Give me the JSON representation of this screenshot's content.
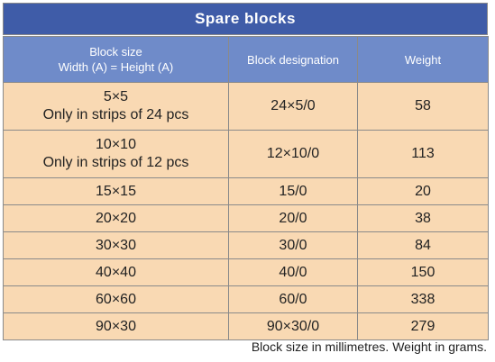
{
  "title": "Spare blocks",
  "headers": {
    "col1_line1": "Block size",
    "col1_line2": "Width (A) = Height (A)",
    "col2": "Block designation",
    "col3": "Weight"
  },
  "rows": [
    {
      "size": "5×5",
      "size_note": "Only in strips of 24 pcs",
      "designation": "24×5/0",
      "weight": "58"
    },
    {
      "size": "10×10",
      "size_note": "Only in strips of 12 pcs",
      "designation": "12×10/0",
      "weight": "113"
    },
    {
      "size": "15×15",
      "designation": "15/0",
      "weight": "20"
    },
    {
      "size": "20×20",
      "designation": "20/0",
      "weight": "38"
    },
    {
      "size": "30×30",
      "designation": "30/0",
      "weight": "84"
    },
    {
      "size": "40×40",
      "designation": "40/0",
      "weight": "150"
    },
    {
      "size": "60×60",
      "designation": "60/0",
      "weight": "338"
    },
    {
      "size": "90×30",
      "designation": "90×30/0",
      "weight": "279"
    }
  ],
  "footnote": "Block size in millimetres. Weight in grams."
}
